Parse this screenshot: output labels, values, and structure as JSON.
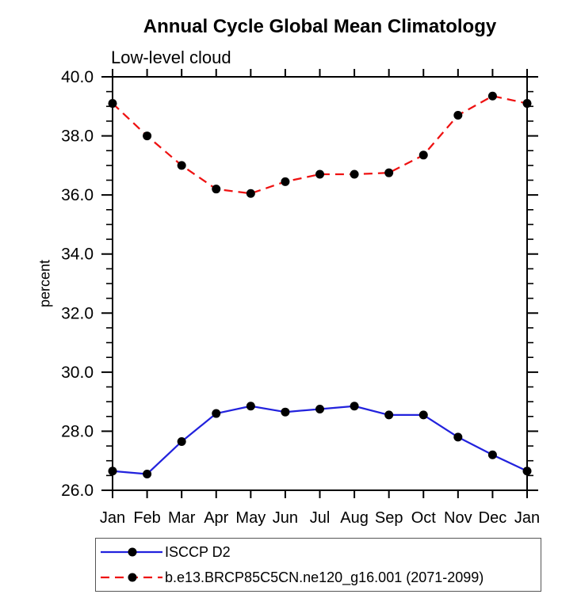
{
  "chart_data": {
    "type": "line",
    "title": "Annual Cycle Global Mean Climatology",
    "subtitle": "Low-level cloud",
    "xlabel": "",
    "ylabel": "percent",
    "categories": [
      "Jan",
      "Feb",
      "Mar",
      "Apr",
      "May",
      "Jun",
      "Jul",
      "Aug",
      "Sep",
      "Oct",
      "Nov",
      "Dec",
      "Jan"
    ],
    "ylim": [
      26.0,
      40.0
    ],
    "y_major_ticks": [
      26,
      28,
      30,
      32,
      34,
      36,
      38,
      40
    ],
    "y_tick_labels": [
      "26.0",
      "28.0",
      "30.0",
      "32.0",
      "34.0",
      "36.0",
      "38.0",
      "40.0"
    ],
    "y_minor_step": 0.5,
    "grid": false,
    "legend_position": "bottom-left",
    "legend_border_color": "#555555",
    "axis_color": "#000000",
    "series": [
      {
        "name": "ISCCP D2",
        "color": "#2222dd",
        "line_style": "solid",
        "marker": "circle",
        "marker_color": "#000000",
        "values": [
          26.65,
          26.55,
          27.65,
          28.6,
          28.85,
          28.65,
          28.75,
          28.85,
          28.55,
          28.55,
          27.8,
          27.2,
          26.65
        ]
      },
      {
        "name": "b.e13.BRCP85C5CN.ne120_g16.001 (2071-2099)",
        "color": "#ee1111",
        "line_style": "dashed",
        "marker": "circle",
        "marker_color": "#000000",
        "values": [
          39.1,
          38.0,
          37.0,
          36.2,
          36.05,
          36.45,
          36.7,
          36.7,
          36.75,
          37.35,
          38.7,
          39.35,
          39.1
        ]
      }
    ]
  }
}
